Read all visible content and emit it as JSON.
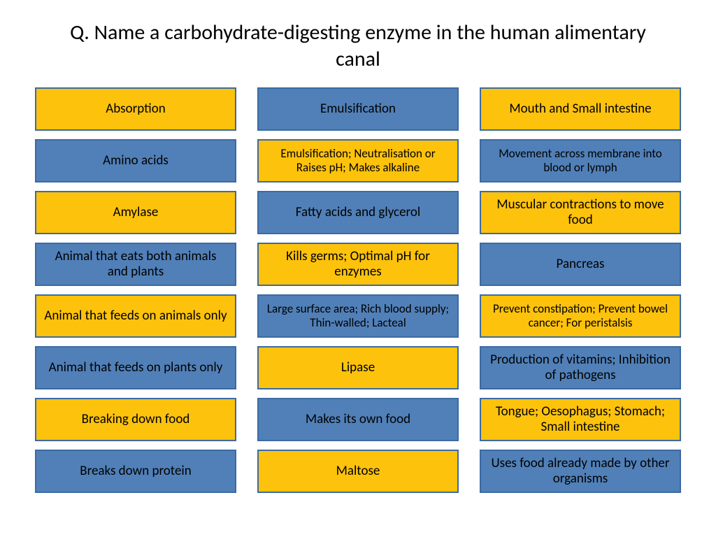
{
  "title": "Q. Name a carbohydrate-digesting enzyme in the human alimentary canal",
  "colors": {
    "yellow_fill": "#fdc20c",
    "yellow_border": "#3c6aa3",
    "blue_fill": "#5180b8",
    "blue_border": "#3c6aa3"
  },
  "columns": [
    [
      {
        "text": "Absorption",
        "style": "yellow",
        "size": "normal"
      },
      {
        "text": "Amino acids",
        "style": "blue",
        "size": "normal"
      },
      {
        "text": "Amylase",
        "style": "yellow",
        "size": "normal"
      },
      {
        "text": "Animal that eats both animals and plants",
        "style": "blue",
        "size": "normal"
      },
      {
        "text": "Animal that feeds on animals only",
        "style": "yellow",
        "size": "normal"
      },
      {
        "text": "Animal that feeds on plants only",
        "style": "blue",
        "size": "normal"
      },
      {
        "text": "Breaking down food",
        "style": "yellow",
        "size": "normal"
      },
      {
        "text": "Breaks down protein",
        "style": "blue",
        "size": "normal"
      }
    ],
    [
      {
        "text": "Emulsification",
        "style": "blue",
        "size": "normal"
      },
      {
        "text": "Emulsification; Neutralisation or Raises pH; Makes alkaline",
        "style": "yellow",
        "size": "small"
      },
      {
        "text": "Fatty acids and glycerol",
        "style": "blue",
        "size": "normal"
      },
      {
        "text": "Kills germs; Optimal pH for enzymes",
        "style": "yellow",
        "size": "normal"
      },
      {
        "text": "Large surface area; Rich blood supply; Thin-walled; Lacteal",
        "style": "blue",
        "size": "small"
      },
      {
        "text": "Lipase",
        "style": "yellow",
        "size": "normal"
      },
      {
        "text": "Makes its own food",
        "style": "blue",
        "size": "normal"
      },
      {
        "text": "Maltose",
        "style": "yellow",
        "size": "normal"
      }
    ],
    [
      {
        "text": "Mouth and Small intestine",
        "style": "yellow",
        "size": "normal"
      },
      {
        "text": "Movement across membrane into blood or lymph",
        "style": "blue",
        "size": "small"
      },
      {
        "text": "Muscular contractions to move food",
        "style": "yellow",
        "size": "normal"
      },
      {
        "text": "Pancreas",
        "style": "blue",
        "size": "normal"
      },
      {
        "text": "Prevent constipation; Prevent bowel cancer; For peristalsis",
        "style": "yellow",
        "size": "small"
      },
      {
        "text": "Production of vitamins; Inhibition of pathogens",
        "style": "blue",
        "size": "normal"
      },
      {
        "text": "Tongue; Oesophagus; Stomach; Small intestine",
        "style": "yellow",
        "size": "normal"
      },
      {
        "text": "Uses food already made by other organisms",
        "style": "blue",
        "size": "normal"
      }
    ]
  ]
}
